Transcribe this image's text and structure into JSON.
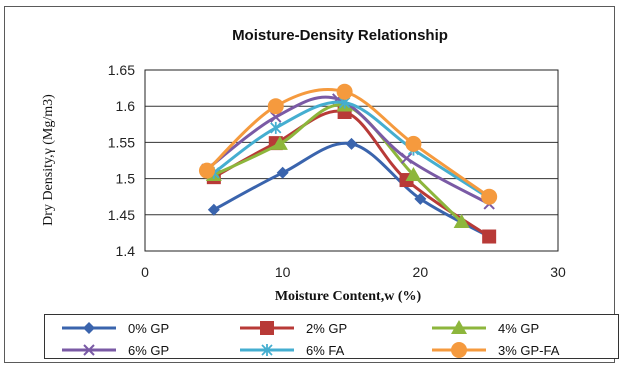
{
  "chart_data": {
    "type": "line",
    "title": "Moisture-Density Relationship",
    "xlabel": "Moisture Content,w (%)",
    "ylabel": "Dry Density,γ (Mg/m3)",
    "xlim": [
      0,
      30
    ],
    "ylim": [
      1.4,
      1.65
    ],
    "xticks": [
      0,
      10,
      20,
      30
    ],
    "yticks": [
      1.4,
      1.45,
      1.5,
      1.55,
      1.6,
      1.65
    ],
    "grid": "horizontal",
    "legend_position": "bottom",
    "series": [
      {
        "name": "0% GP",
        "color": "#3a64ad",
        "marker": "diamond",
        "x": [
          5,
          10,
          15,
          20,
          25
        ],
        "y": [
          1.457,
          1.508,
          1.548,
          1.472,
          1.42
        ]
      },
      {
        "name": "2% GP",
        "color": "#b83a37",
        "marker": "square",
        "x": [
          5,
          9.5,
          14.5,
          19,
          25
        ],
        "y": [
          1.502,
          1.549,
          1.592,
          1.498,
          1.42
        ]
      },
      {
        "name": "4% GP",
        "color": "#8db63c",
        "marker": "triangle",
        "x": [
          5,
          9.8,
          14.5,
          19.5,
          23
        ],
        "y": [
          1.505,
          1.548,
          1.601,
          1.505,
          1.44
        ]
      },
      {
        "name": "6% GP",
        "color": "#7a5aa5",
        "marker": "x",
        "x": [
          4.5,
          9.5,
          14,
          19,
          25
        ],
        "y": [
          1.513,
          1.585,
          1.61,
          1.528,
          1.465
        ]
      },
      {
        "name": "6% FA",
        "color": "#45aed0",
        "marker": "star",
        "x": [
          5,
          9.5,
          14.5,
          19.5,
          25
        ],
        "y": [
          1.508,
          1.57,
          1.605,
          1.54,
          1.473
        ]
      },
      {
        "name": "3% GP-FA",
        "color": "#f59a3e",
        "marker": "circle",
        "x": [
          4.5,
          9.5,
          14.5,
          19.5,
          25
        ],
        "y": [
          1.511,
          1.6,
          1.62,
          1.548,
          1.475
        ]
      }
    ]
  }
}
